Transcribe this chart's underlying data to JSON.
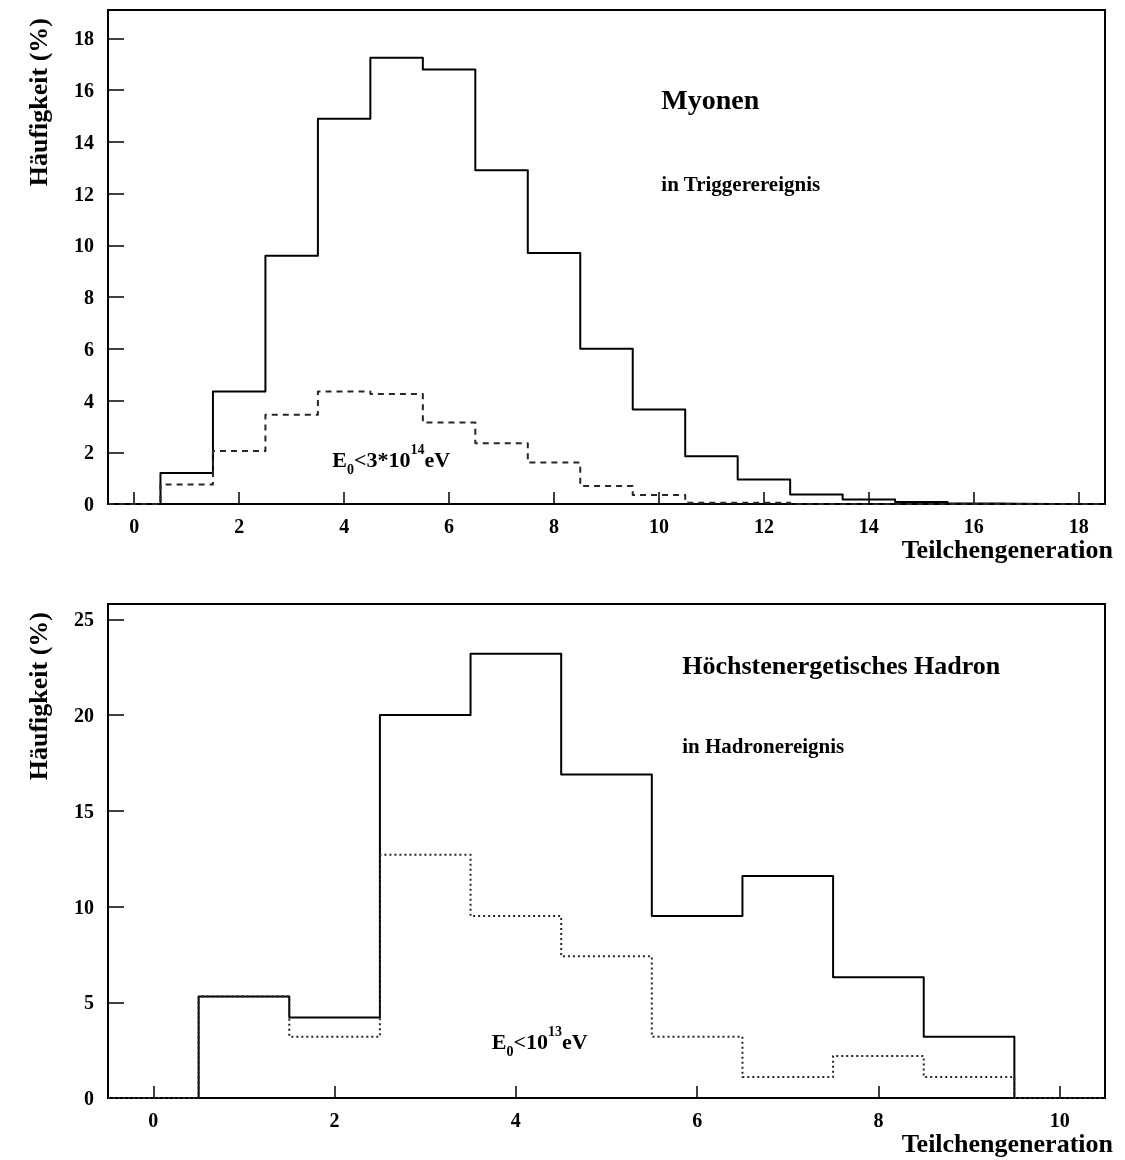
{
  "chart_data": [
    {
      "type": "histogram",
      "title": "Myonen",
      "subtitle": "in Triggerereignis",
      "xlabel": "Teilchengeneration",
      "ylabel": "Häufigkeit (%)",
      "annotations": [
        "E$_{0}$<3*10$^{14}$eV"
      ],
      "bins": [
        -0.5,
        0.5,
        1.5,
        2.5,
        3.5,
        4.5,
        5.5,
        6.5,
        7.5,
        8.5,
        9.5,
        10.5,
        11.5,
        12.5,
        13.5,
        14.5,
        15.5,
        16.5,
        17.5,
        18.5
      ],
      "series": [
        {
          "color": "#000000",
          "line_style": "solid",
          "values": [
            0,
            1.2,
            4.35,
            9.6,
            14.9,
            17.25,
            16.8,
            12.9,
            9.7,
            6.0,
            3.65,
            1.85,
            0.95,
            0.37,
            0.17,
            0.08,
            0.02,
            0,
            0
          ]
        },
        {
          "color": "#262626",
          "line_style": "dashed",
          "values": [
            0,
            0.75,
            2.05,
            3.45,
            4.35,
            4.25,
            3.15,
            2.35,
            1.6,
            0.7,
            0.35,
            0.05,
            0.05,
            0,
            0,
            0,
            0,
            0,
            0
          ]
        }
      ],
      "xlim": [
        -0.5,
        18.5
      ],
      "ylim": [
        0,
        19.1
      ],
      "xticks": [
        0,
        2,
        4,
        6,
        8,
        10,
        12,
        14,
        16,
        18
      ],
      "yticks": [
        0,
        2,
        4,
        6,
        8,
        10,
        12,
        14,
        16,
        18
      ]
    },
    {
      "type": "histogram",
      "title": "Höchstenergetisches Hadron",
      "subtitle": "in Hadronereignis",
      "xlabel": "Teilchengeneration",
      "ylabel": "Häufigkeit (%)",
      "annotations": [
        "E$_{0}$<10$^{13}$eV"
      ],
      "bins": [
        -0.5,
        0.5,
        1.5,
        2.5,
        3.5,
        4.5,
        5.5,
        6.5,
        7.5,
        8.5,
        9.5,
        10.5
      ],
      "series": [
        {
          "color": "#000000",
          "line_style": "solid",
          "values": [
            0,
            5.3,
            4.2,
            20,
            23.2,
            16.9,
            9.5,
            11.6,
            6.3,
            3.2,
            0
          ]
        },
        {
          "color": "#262626",
          "line_style": "dotted",
          "values": [
            0,
            5.3,
            3.2,
            12.7,
            9.5,
            7.4,
            3.2,
            1.1,
            2.2,
            1.1,
            0
          ]
        }
      ],
      "xlim": [
        -0.5,
        10.5
      ],
      "ylim": [
        0,
        25.8
      ],
      "xticks": [
        0,
        2,
        4,
        6,
        8,
        10
      ],
      "yticks": [
        0,
        5,
        10,
        15,
        20,
        25
      ]
    }
  ]
}
